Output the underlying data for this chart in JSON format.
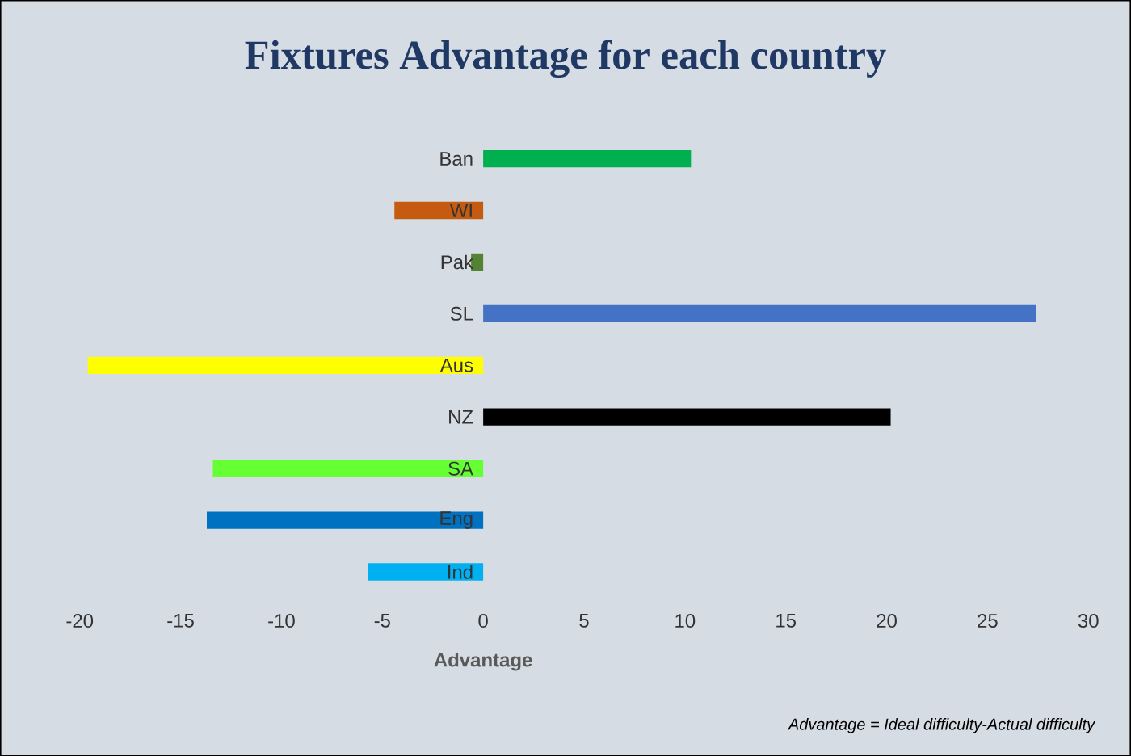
{
  "chart_data": {
    "type": "bar",
    "orientation": "horizontal",
    "title": "Fixtures Advantage for each country",
    "xlabel": "Advantage",
    "categories": [
      "Ban",
      "WI",
      "Pak",
      "SL",
      "Aus",
      "NZ",
      "SA",
      "Eng",
      "Ind"
    ],
    "values": [
      10.3,
      -4.4,
      -0.6,
      27.4,
      -19.6,
      20.2,
      -13.4,
      -13.7,
      -5.7
    ],
    "colors": [
      "#00b050",
      "#c55a11",
      "#548235",
      "#4472c4",
      "#ffff00",
      "#000000",
      "#66ff33",
      "#0070c0",
      "#00b0f0"
    ],
    "xlim": [
      -20,
      30
    ],
    "xticks": [
      -20,
      -15,
      -10,
      -5,
      0,
      5,
      10,
      15,
      20,
      25,
      30
    ],
    "annotations": [
      "Advantage = Ideal difficulty-Actual difficulty"
    ]
  }
}
